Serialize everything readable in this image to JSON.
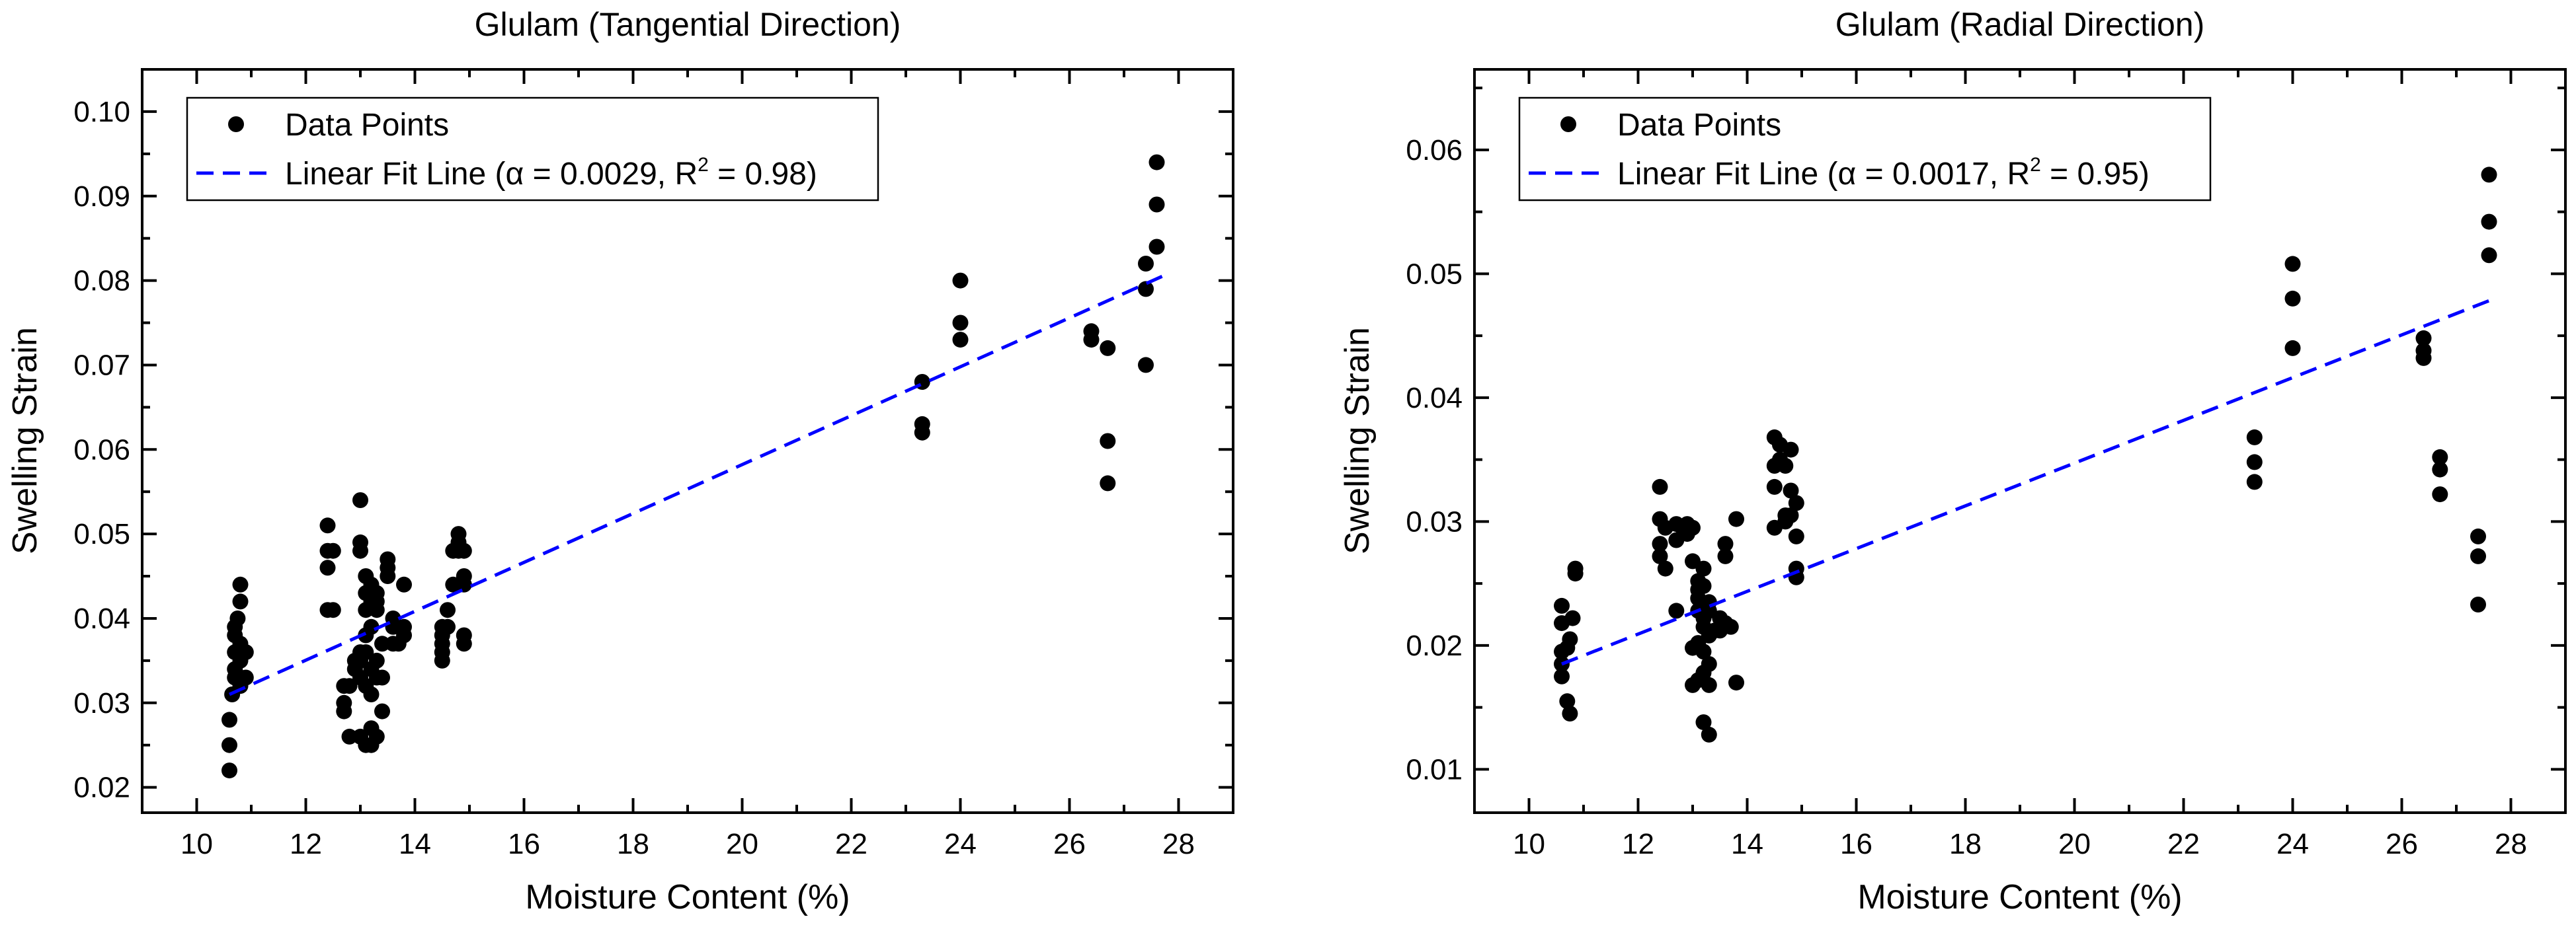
{
  "chart_data": [
    {
      "type": "scatter",
      "title": "Glulam (Tangential Direction)",
      "xlabel": "Moisture Content (%)",
      "ylabel": "Swelling Strain",
      "xlim": [
        9,
        29
      ],
      "ylim": [
        0.017,
        0.105
      ],
      "xticks": [
        10,
        12,
        14,
        16,
        18,
        20,
        22,
        24,
        26,
        28
      ],
      "xtick_labels": [
        "10",
        "12",
        "14",
        "16",
        "18",
        "20",
        "22",
        "24",
        "26",
        "28"
      ],
      "yticks": [
        0.02,
        0.03,
        0.04,
        0.05,
        0.06,
        0.07,
        0.08,
        0.09,
        0.1
      ],
      "ytick_labels": [
        "0.02",
        "0.03",
        "0.04",
        "0.05",
        "0.06",
        "0.07",
        "0.08",
        "0.09",
        "0.10"
      ],
      "legend": {
        "position": "top-left",
        "points_label": "Data Points",
        "fit_prefix": "Linear Fit Line (",
        "alpha_symbol": "α",
        "alpha_text": " = 0.0029, R",
        "r2_sup": "2",
        "r2_text": " = 0.98)"
      },
      "fit": {
        "x": [
          10.6,
          27.7
        ],
        "y": [
          0.031,
          0.0805
        ]
      },
      "points": [
        [
          10.6,
          0.022
        ],
        [
          10.6,
          0.025
        ],
        [
          10.6,
          0.028
        ],
        [
          10.65,
          0.031
        ],
        [
          10.7,
          0.033
        ],
        [
          10.7,
          0.034
        ],
        [
          10.7,
          0.036
        ],
        [
          10.7,
          0.038
        ],
        [
          10.7,
          0.039
        ],
        [
          10.75,
          0.04
        ],
        [
          10.8,
          0.032
        ],
        [
          10.8,
          0.033
        ],
        [
          10.8,
          0.035
        ],
        [
          10.8,
          0.037
        ],
        [
          10.8,
          0.042
        ],
        [
          10.8,
          0.044
        ],
        [
          10.9,
          0.033
        ],
        [
          10.9,
          0.036
        ],
        [
          12.4,
          0.041
        ],
        [
          12.4,
          0.046
        ],
        [
          12.4,
          0.048
        ],
        [
          12.4,
          0.051
        ],
        [
          12.5,
          0.041
        ],
        [
          12.5,
          0.048
        ],
        [
          12.7,
          0.029
        ],
        [
          12.7,
          0.03
        ],
        [
          12.7,
          0.032
        ],
        [
          12.8,
          0.026
        ],
        [
          12.8,
          0.032
        ],
        [
          12.9,
          0.034
        ],
        [
          12.9,
          0.035
        ],
        [
          13.0,
          0.026
        ],
        [
          13.0,
          0.033
        ],
        [
          13.0,
          0.035
        ],
        [
          13.0,
          0.036
        ],
        [
          13.0,
          0.048
        ],
        [
          13.0,
          0.049
        ],
        [
          13.0,
          0.054
        ],
        [
          13.1,
          0.025
        ],
        [
          13.1,
          0.032
        ],
        [
          13.1,
          0.036
        ],
        [
          13.1,
          0.038
        ],
        [
          13.1,
          0.041
        ],
        [
          13.1,
          0.043
        ],
        [
          13.1,
          0.045
        ],
        [
          13.2,
          0.025
        ],
        [
          13.2,
          0.027
        ],
        [
          13.2,
          0.031
        ],
        [
          13.2,
          0.034
        ],
        [
          13.2,
          0.039
        ],
        [
          13.2,
          0.042
        ],
        [
          13.2,
          0.044
        ],
        [
          13.3,
          0.026
        ],
        [
          13.3,
          0.033
        ],
        [
          13.3,
          0.035
        ],
        [
          13.3,
          0.041
        ],
        [
          13.3,
          0.042
        ],
        [
          13.3,
          0.043
        ],
        [
          13.4,
          0.029
        ],
        [
          13.4,
          0.033
        ],
        [
          13.4,
          0.037
        ],
        [
          13.5,
          0.045
        ],
        [
          13.5,
          0.046
        ],
        [
          13.5,
          0.047
        ],
        [
          13.6,
          0.037
        ],
        [
          13.6,
          0.039
        ],
        [
          13.6,
          0.04
        ],
        [
          13.7,
          0.037
        ],
        [
          13.8,
          0.038
        ],
        [
          13.8,
          0.039
        ],
        [
          13.8,
          0.044
        ],
        [
          14.5,
          0.035
        ],
        [
          14.5,
          0.036
        ],
        [
          14.5,
          0.037
        ],
        [
          14.5,
          0.038
        ],
        [
          14.5,
          0.039
        ],
        [
          14.6,
          0.039
        ],
        [
          14.6,
          0.041
        ],
        [
          14.7,
          0.044
        ],
        [
          14.7,
          0.048
        ],
        [
          14.8,
          0.048
        ],
        [
          14.8,
          0.049
        ],
        [
          14.8,
          0.05
        ],
        [
          14.9,
          0.037
        ],
        [
          14.9,
          0.038
        ],
        [
          14.9,
          0.044
        ],
        [
          14.9,
          0.045
        ],
        [
          14.9,
          0.048
        ],
        [
          23.3,
          0.062
        ],
        [
          23.3,
          0.063
        ],
        [
          23.3,
          0.068
        ],
        [
          24.0,
          0.073
        ],
        [
          24.0,
          0.075
        ],
        [
          24.0,
          0.08
        ],
        [
          26.4,
          0.073
        ],
        [
          26.4,
          0.074
        ],
        [
          26.7,
          0.056
        ],
        [
          26.7,
          0.061
        ],
        [
          26.7,
          0.072
        ],
        [
          27.4,
          0.07
        ],
        [
          27.4,
          0.079
        ],
        [
          27.4,
          0.082
        ],
        [
          27.6,
          0.084
        ],
        [
          27.6,
          0.089
        ],
        [
          27.6,
          0.094
        ]
      ]
    },
    {
      "type": "scatter",
      "title": "Glulam (Radial Direction)",
      "xlabel": "Moisture Content (%)",
      "ylabel": "Swelling Strain",
      "xlim": [
        9,
        29
      ],
      "ylim": [
        0.0065,
        0.0665
      ],
      "xticks": [
        10,
        12,
        14,
        16,
        18,
        20,
        22,
        24,
        26,
        28
      ],
      "xtick_labels": [
        "10",
        "12",
        "14",
        "16",
        "18",
        "20",
        "22",
        "24",
        "26",
        "28"
      ],
      "yticks": [
        0.01,
        0.02,
        0.03,
        0.04,
        0.05,
        0.06
      ],
      "ytick_labels": [
        "0.01",
        "0.02",
        "0.03",
        "0.04",
        "0.05",
        "0.06"
      ],
      "legend": {
        "position": "top-left",
        "points_label": "Data Points",
        "fit_prefix": "Linear Fit Line (",
        "alpha_symbol": "α",
        "alpha_text": " = 0.0017, R",
        "r2_sup": "2",
        "r2_text": " = 0.95)"
      },
      "fit": {
        "x": [
          10.6,
          27.7
        ],
        "y": [
          0.0185,
          0.048
        ]
      },
      "points": [
        [
          10.6,
          0.0175
        ],
        [
          10.6,
          0.0185
        ],
        [
          10.6,
          0.0195
        ],
        [
          10.6,
          0.0218
        ],
        [
          10.6,
          0.0232
        ],
        [
          10.7,
          0.0155
        ],
        [
          10.7,
          0.0198
        ],
        [
          10.75,
          0.0145
        ],
        [
          10.75,
          0.0205
        ],
        [
          10.8,
          0.0222
        ],
        [
          10.85,
          0.0258
        ],
        [
          10.85,
          0.0262
        ],
        [
          12.4,
          0.0328
        ],
        [
          12.4,
          0.0302
        ],
        [
          12.4,
          0.0282
        ],
        [
          12.4,
          0.0272
        ],
        [
          12.5,
          0.0262
        ],
        [
          12.5,
          0.0295
        ],
        [
          12.7,
          0.0228
        ],
        [
          12.7,
          0.0285
        ],
        [
          12.7,
          0.0298
        ],
        [
          12.8,
          0.0296
        ],
        [
          12.9,
          0.029
        ],
        [
          12.9,
          0.0298
        ],
        [
          13.0,
          0.0168
        ],
        [
          13.0,
          0.0198
        ],
        [
          13.0,
          0.0268
        ],
        [
          13.0,
          0.0295
        ],
        [
          13.1,
          0.0172
        ],
        [
          13.1,
          0.0202
        ],
        [
          13.1,
          0.0228
        ],
        [
          13.1,
          0.0238
        ],
        [
          13.1,
          0.0245
        ],
        [
          13.1,
          0.0252
        ],
        [
          13.2,
          0.0138
        ],
        [
          13.2,
          0.0178
        ],
        [
          13.2,
          0.0195
        ],
        [
          13.2,
          0.0215
        ],
        [
          13.2,
          0.0222
        ],
        [
          13.2,
          0.0248
        ],
        [
          13.2,
          0.0262
        ],
        [
          13.3,
          0.0128
        ],
        [
          13.3,
          0.0168
        ],
        [
          13.3,
          0.0185
        ],
        [
          13.3,
          0.0208
        ],
        [
          13.3,
          0.0228
        ],
        [
          13.3,
          0.0235
        ],
        [
          13.4,
          0.0212
        ],
        [
          13.5,
          0.0212
        ],
        [
          13.5,
          0.0222
        ],
        [
          13.6,
          0.0218
        ],
        [
          13.6,
          0.0272
        ],
        [
          13.6,
          0.0282
        ],
        [
          13.7,
          0.0215
        ],
        [
          13.8,
          0.017
        ],
        [
          13.8,
          0.0302
        ],
        [
          14.5,
          0.0295
        ],
        [
          14.5,
          0.0328
        ],
        [
          14.5,
          0.0345
        ],
        [
          14.5,
          0.0368
        ],
        [
          14.6,
          0.035
        ],
        [
          14.6,
          0.0362
        ],
        [
          14.7,
          0.03
        ],
        [
          14.7,
          0.0305
        ],
        [
          14.7,
          0.0345
        ],
        [
          14.8,
          0.0305
        ],
        [
          14.8,
          0.0325
        ],
        [
          14.8,
          0.0358
        ],
        [
          14.9,
          0.0255
        ],
        [
          14.9,
          0.0262
        ],
        [
          14.9,
          0.0288
        ],
        [
          14.9,
          0.0315
        ],
        [
          23.3,
          0.0332
        ],
        [
          23.3,
          0.0348
        ],
        [
          23.3,
          0.0368
        ],
        [
          24.0,
          0.044
        ],
        [
          24.0,
          0.048
        ],
        [
          24.0,
          0.0508
        ],
        [
          26.4,
          0.0432
        ],
        [
          26.4,
          0.0438
        ],
        [
          26.4,
          0.0448
        ],
        [
          26.7,
          0.0322
        ],
        [
          26.7,
          0.0342
        ],
        [
          26.7,
          0.0352
        ],
        [
          27.4,
          0.0233
        ],
        [
          27.4,
          0.0272
        ],
        [
          27.4,
          0.0288
        ],
        [
          27.6,
          0.0515
        ],
        [
          27.6,
          0.0542
        ],
        [
          27.6,
          0.058
        ]
      ]
    }
  ]
}
